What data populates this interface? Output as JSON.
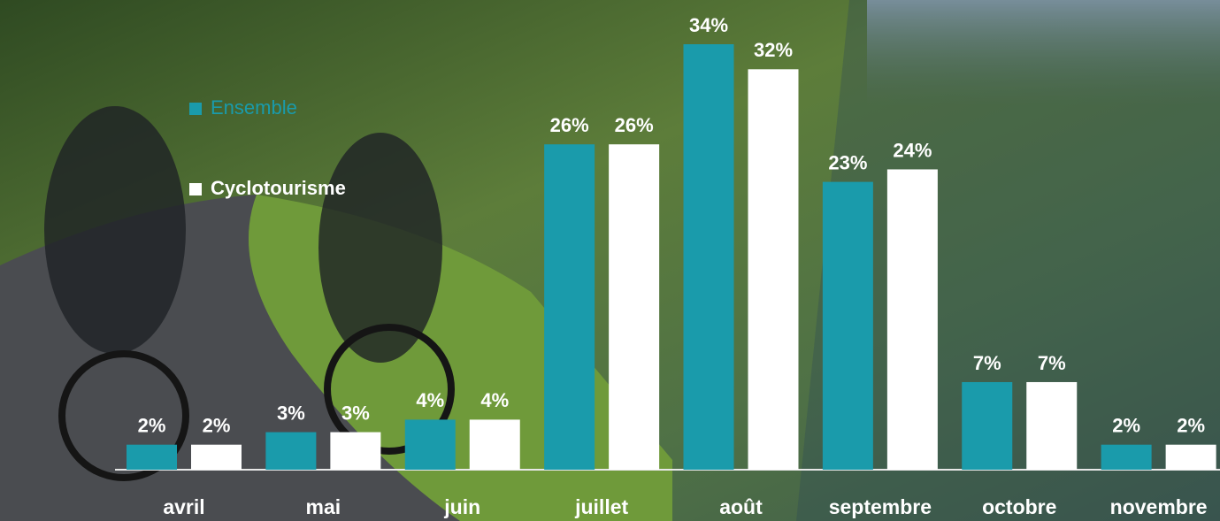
{
  "chart_data": {
    "type": "bar",
    "categories": [
      "avril",
      "mai",
      "juin",
      "juillet",
      "août",
      "septembre",
      "octobre",
      "novembre"
    ],
    "series": [
      {
        "name": "Ensemble",
        "color": "#1a9bab",
        "values": [
          2,
          3,
          4,
          26,
          34,
          23,
          7,
          2
        ],
        "value_labels": [
          "2%",
          "3%",
          "4%",
          "26%",
          "34%",
          "23%",
          "7%",
          "2%"
        ]
      },
      {
        "name": "Cyclotourisme",
        "color": "#ffffff",
        "values": [
          2,
          3,
          4,
          26,
          32,
          24,
          7,
          2
        ],
        "value_labels": [
          "2%",
          "3%",
          "4%",
          "26%",
          "32%",
          "24%",
          "7%",
          "2%"
        ]
      }
    ],
    "legend": "top-left"
  }
}
